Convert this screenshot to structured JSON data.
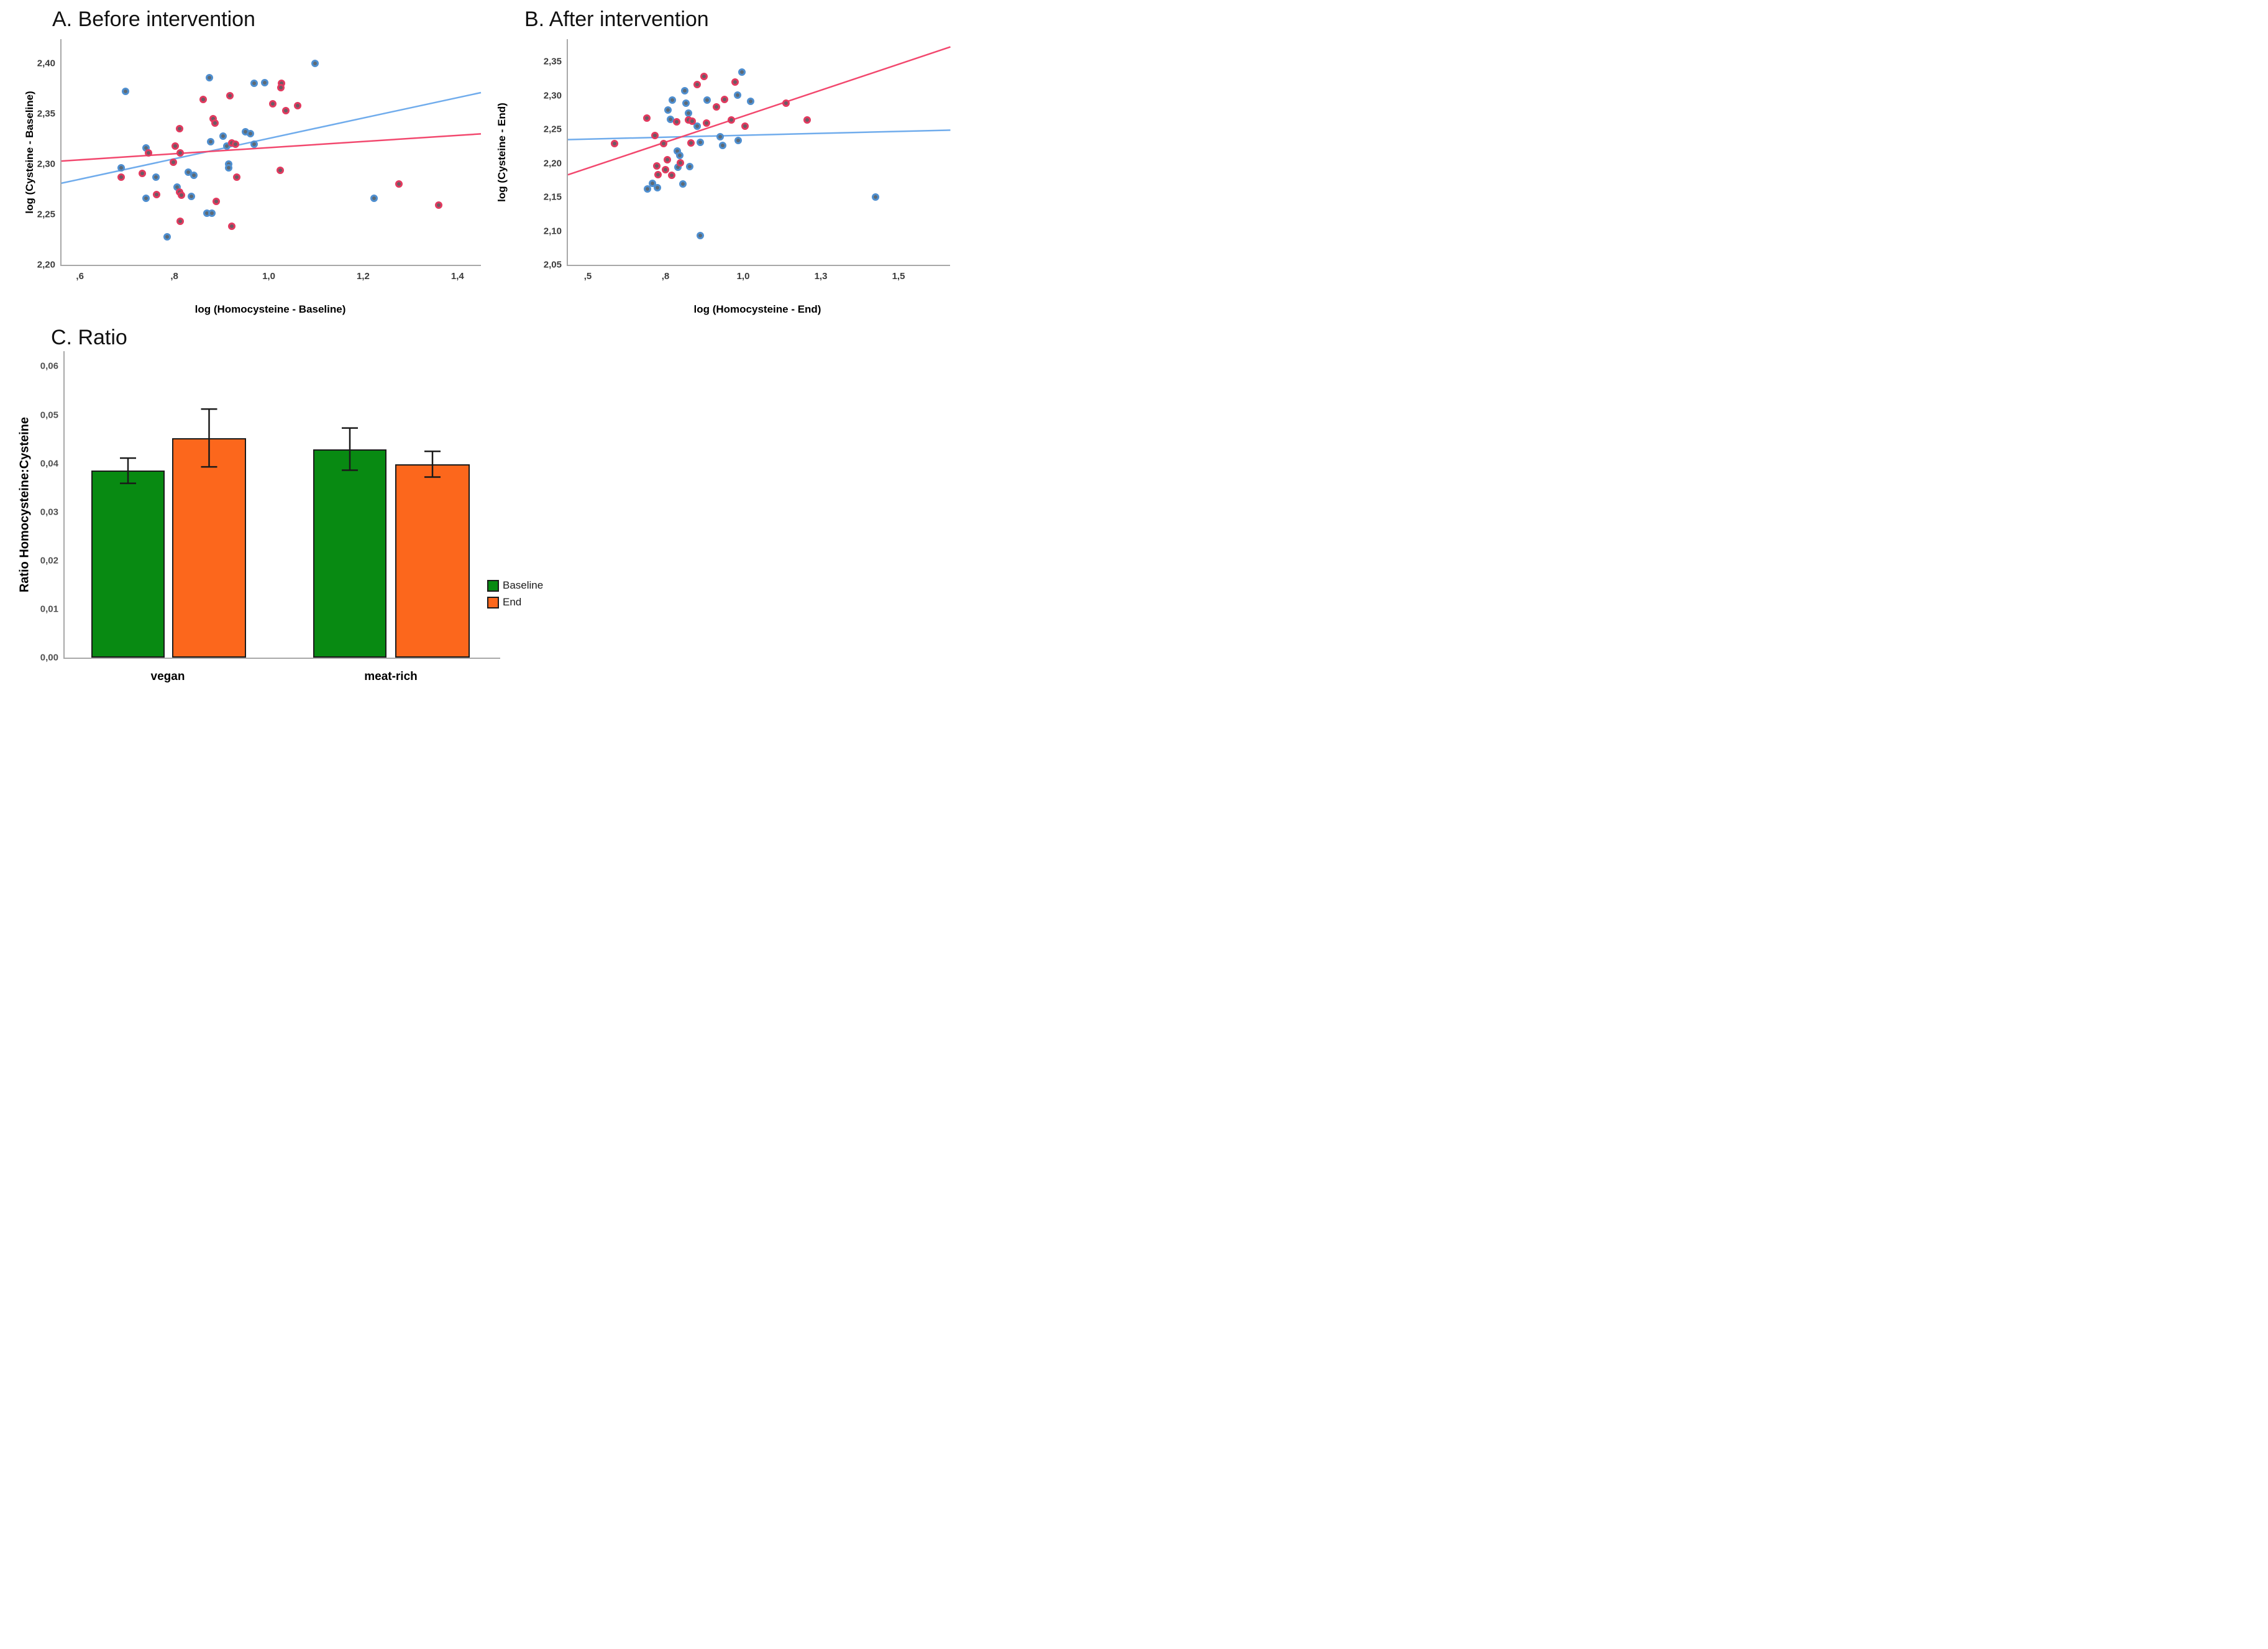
{
  "figure_type": "three-panel scientific figure",
  "colors": {
    "axis": "#a8a8a8",
    "blue_line": "#70acec",
    "red_line": "#f2486e",
    "blue_ring": "#4f8fd0",
    "blue_core": "#5d6a75",
    "red_ring": "#e23a5f",
    "red_core": "#6d5a64",
    "bar_green": "#088a12",
    "bar_orange": "#fc671c",
    "error_bar": "#1a1a1a"
  },
  "legend": {
    "items": [
      {
        "label": "Baseline",
        "color": "#088a12"
      },
      {
        "label": "End",
        "color": "#fc671c"
      }
    ]
  },
  "chart_data": [
    {
      "id": "A",
      "type": "scatter",
      "title": "A. Before intervention",
      "xlabel": "log (Homocysteine - Baseline)",
      "ylabel": "log (Cysteine - Baseline)",
      "xlim": [
        0.558,
        1.447
      ],
      "ylim": [
        2.2,
        2.424
      ],
      "grid": false,
      "xticks": {
        "values": [
          0.6,
          0.8,
          1.0,
          1.2,
          1.4
        ],
        "labels": [
          ",6",
          ",8",
          "1,0",
          "1,2",
          "1,4"
        ]
      },
      "yticks": {
        "values": [
          2.2,
          2.25,
          2.3,
          2.35,
          2.4
        ],
        "labels": [
          "2,20",
          "2,25",
          "2,30",
          "2,35",
          "2,40"
        ]
      },
      "series": [
        {
          "name": "blue-group",
          "ring": "#4f8fd0",
          "core": "#5d6a75",
          "trend": {
            "color": "#70acec",
            "x1": 0.558,
            "y1": 2.281,
            "x2": 1.447,
            "y2": 2.371
          },
          "points": [
            [
              0.694,
              2.372
            ],
            [
              0.871,
              2.386
            ],
            [
              0.967,
              2.38
            ],
            [
              0.989,
              2.381
            ],
            [
              1.096,
              2.4
            ],
            [
              0.9,
              2.328
            ],
            [
              0.948,
              2.332
            ],
            [
              0.958,
              2.33
            ],
            [
              0.874,
              2.322
            ],
            [
              0.908,
              2.318
            ],
            [
              0.967,
              2.32
            ],
            [
              0.737,
              2.316
            ],
            [
              0.685,
              2.296
            ],
            [
              0.759,
              2.287
            ],
            [
              0.827,
              2.292
            ],
            [
              0.839,
              2.289
            ],
            [
              0.913,
              2.3
            ],
            [
              0.913,
              2.296
            ],
            [
              0.803,
              2.277
            ],
            [
              0.737,
              2.266
            ],
            [
              0.834,
              2.268
            ],
            [
              0.866,
              2.251
            ],
            [
              0.877,
              2.251
            ],
            [
              0.782,
              2.228
            ],
            [
              1.22,
              2.266
            ]
          ]
        },
        {
          "name": "red-group",
          "ring": "#e23a5f",
          "core": "#6d5a64",
          "trend": {
            "color": "#f2486e",
            "x1": 0.558,
            "y1": 2.303,
            "x2": 1.447,
            "y2": 2.33
          },
          "points": [
            [
              0.858,
              2.364
            ],
            [
              0.915,
              2.368
            ],
            [
              1.006,
              2.36
            ],
            [
              0.879,
              2.345
            ],
            [
              0.883,
              2.341
            ],
            [
              0.808,
              2.335
            ],
            [
              0.919,
              2.321
            ],
            [
              0.927,
              2.32
            ],
            [
              0.743,
              2.311
            ],
            [
              0.799,
              2.318
            ],
            [
              0.81,
              2.311
            ],
            [
              0.795,
              2.302
            ],
            [
              0.685,
              2.287
            ],
            [
              0.729,
              2.291
            ],
            [
              0.929,
              2.287
            ],
            [
              0.76,
              2.27
            ],
            [
              0.809,
              2.272
            ],
            [
              0.813,
              2.269
            ],
            [
              0.886,
              2.263
            ],
            [
              0.81,
              2.243
            ],
            [
              0.919,
              2.238
            ],
            [
              1.025,
              2.38
            ],
            [
              1.023,
              2.376
            ],
            [
              1.058,
              2.358
            ],
            [
              1.034,
              2.353
            ],
            [
              1.022,
              2.294
            ],
            [
              1.273,
              2.28
            ],
            [
              1.357,
              2.259
            ]
          ]
        }
      ]
    },
    {
      "id": "B",
      "type": "scatter",
      "title": "B. After intervention",
      "xlabel": "log (Homocysteine - End)",
      "ylabel": "log (Cysteine - End)",
      "xlim": [
        0.432,
        1.663
      ],
      "ylim": [
        2.05,
        2.383
      ],
      "grid": false,
      "xticks": {
        "values": [
          0.5,
          0.75,
          1.0,
          1.25,
          1.5
        ],
        "labels": [
          ",5",
          ",8",
          "1,0",
          "1,3",
          "1,5"
        ]
      },
      "yticks": {
        "values": [
          2.05,
          2.1,
          2.15,
          2.2,
          2.25,
          2.3,
          2.35
        ],
        "labels": [
          "2,05",
          "2,10",
          "2,15",
          "2,20",
          "2,25",
          "2,30",
          "2,35"
        ]
      },
      "series": [
        {
          "name": "blue-group",
          "ring": "#4f8fd0",
          "core": "#5d6a75",
          "trend": {
            "color": "#70acec",
            "x1": 0.432,
            "y1": 2.235,
            "x2": 1.663,
            "y2": 2.249
          },
          "points": [
            [
              0.991,
              2.335
            ],
            [
              0.807,
              2.307
            ],
            [
              0.978,
              2.301
            ],
            [
              0.768,
              2.293
            ],
            [
              0.812,
              2.289
            ],
            [
              0.879,
              2.293
            ],
            [
              1.019,
              2.292
            ],
            [
              0.754,
              2.279
            ],
            [
              0.82,
              2.274
            ],
            [
              0.761,
              2.265
            ],
            [
              0.848,
              2.255
            ],
            [
              0.922,
              2.239
            ],
            [
              0.858,
              2.231
            ],
            [
              0.93,
              2.226
            ],
            [
              0.98,
              2.234
            ],
            [
              0.783,
              2.218
            ],
            [
              0.791,
              2.212
            ],
            [
              0.823,
              2.195
            ],
            [
              0.786,
              2.194
            ],
            [
              0.703,
              2.17
            ],
            [
              0.719,
              2.164
            ],
            [
              0.687,
              2.162
            ],
            [
              0.802,
              2.169
            ],
            [
              0.857,
              2.093
            ],
            [
              1.421,
              2.15
            ]
          ]
        },
        {
          "name": "red-group",
          "ring": "#e23a5f",
          "core": "#6d5a64",
          "trend": {
            "color": "#f2486e",
            "x1": 0.432,
            "y1": 2.183,
            "x2": 1.663,
            "y2": 2.372
          },
          "points": [
            [
              0.869,
              2.328
            ],
            [
              0.969,
              2.32
            ],
            [
              0.847,
              2.316
            ],
            [
              0.936,
              2.294
            ],
            [
              0.909,
              2.283
            ],
            [
              0.686,
              2.267
            ],
            [
              0.782,
              2.261
            ],
            [
              0.82,
              2.264
            ],
            [
              0.832,
              2.262
            ],
            [
              0.878,
              2.259
            ],
            [
              0.958,
              2.264
            ],
            [
              1.002,
              2.255
            ],
            [
              0.712,
              2.241
            ],
            [
              0.581,
              2.229
            ],
            [
              0.739,
              2.229
            ],
            [
              0.828,
              2.23
            ],
            [
              0.752,
              2.205
            ],
            [
              0.793,
              2.201
            ],
            [
              0.717,
              2.196
            ],
            [
              0.745,
              2.191
            ],
            [
              0.722,
              2.183
            ],
            [
              0.766,
              2.182
            ],
            [
              1.133,
              2.289
            ],
            [
              1.201,
              2.264
            ]
          ]
        }
      ]
    },
    {
      "id": "C",
      "type": "bar",
      "title": "C. Ratio",
      "xlabel": "",
      "ylabel": "Ratio Homocysteine:Cysteine",
      "categories": [
        "vegan",
        "meat-rich"
      ],
      "ylim": [
        0,
        0.063
      ],
      "grid": false,
      "yticks": {
        "values": [
          0.0,
          0.01,
          0.02,
          0.03,
          0.04,
          0.05,
          0.06
        ],
        "labels": [
          "0,00",
          "0,01",
          "0,02",
          "0,03",
          "0,04",
          "0,05",
          "0,06"
        ]
      },
      "legend_position": "right",
      "series": [
        {
          "name": "Baseline",
          "color": "#088a12",
          "values": [
            0.0385,
            0.0429
          ],
          "errors_low": [
            0.0359,
            0.0386
          ],
          "errors_high": [
            0.0411,
            0.0473
          ]
        },
        {
          "name": "End",
          "color": "#fc671c",
          "values": [
            0.0452,
            0.0398
          ],
          "errors_low": [
            0.0393,
            0.0372
          ],
          "errors_high": [
            0.0512,
            0.0425
          ]
        }
      ]
    }
  ]
}
